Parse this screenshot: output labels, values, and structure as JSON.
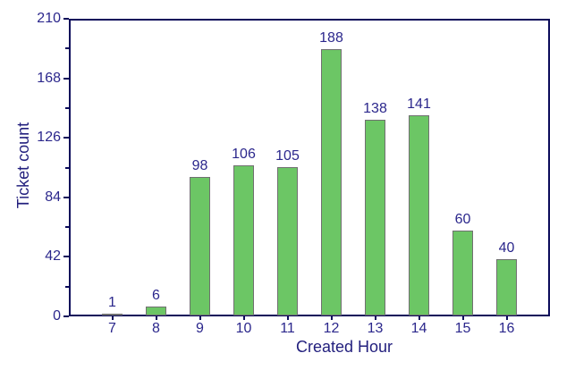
{
  "chart_data": {
    "type": "bar",
    "title": "",
    "xlabel": "Created Hour",
    "ylabel": "Ticket count",
    "categories": [
      "7",
      "8",
      "9",
      "10",
      "11",
      "12",
      "13",
      "14",
      "15",
      "16"
    ],
    "values": [
      1,
      6,
      98,
      106,
      105,
      188,
      138,
      141,
      60,
      40
    ],
    "bar_value_labels": [
      "1",
      "6",
      "98",
      "106",
      "105",
      "188",
      "138",
      "141",
      "60",
      "40"
    ],
    "ylim": [
      0,
      210
    ],
    "yticks_major": [
      0,
      42,
      84,
      126,
      168,
      210
    ],
    "ytick_labels": [
      "0",
      "42",
      "84",
      "126",
      "168",
      "210"
    ],
    "yticks_minor": [
      21,
      63,
      105,
      147,
      189
    ],
    "grid": false,
    "legend": null,
    "colors": {
      "bar_fill": "#6cc665",
      "bar_border": "#707070",
      "text": "#2b278c",
      "axis": "#0b0b5a",
      "background": "#ffffff"
    }
  }
}
